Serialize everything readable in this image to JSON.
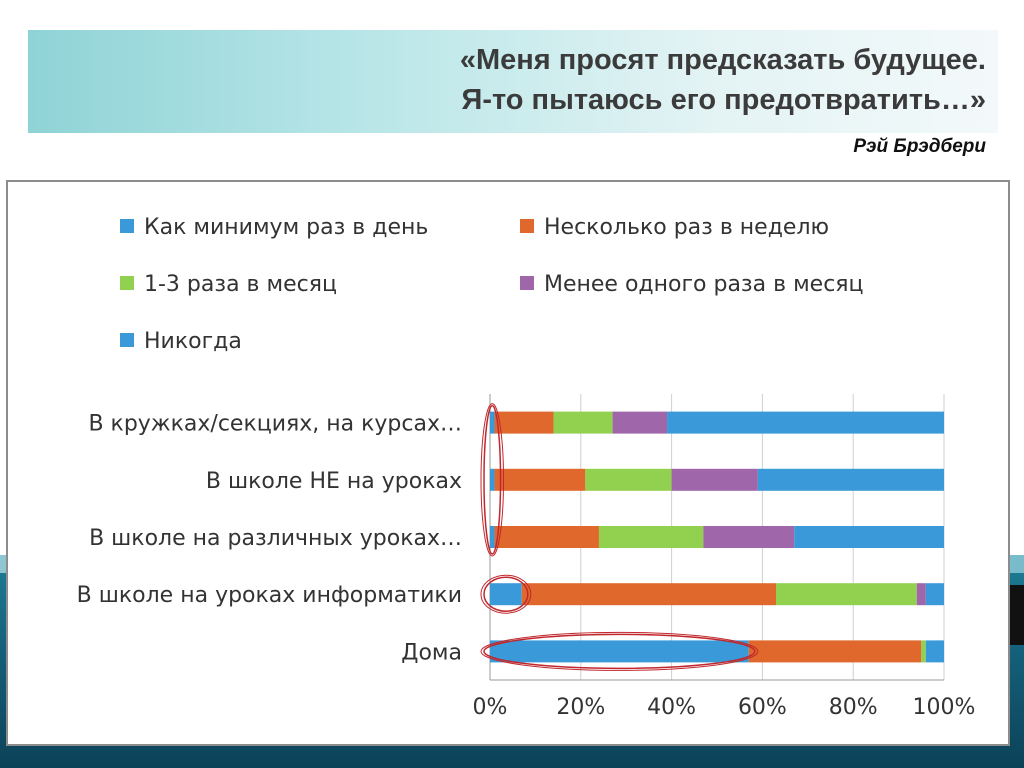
{
  "header": {
    "quote_line_1": "«Меня просят предсказать будущее.",
    "quote_line_2": "Я-то пытаюсь его предотвратить…»",
    "author": "Рэй Брэдбери"
  },
  "chart_data": {
    "type": "bar",
    "orientation": "horizontal",
    "stacked": "percent",
    "title": "",
    "xlabel": "",
    "ylabel": "",
    "xlim": [
      0,
      100
    ],
    "x_ticks": [
      "0%",
      "20%",
      "40%",
      "60%",
      "80%",
      "100%"
    ],
    "grid": true,
    "legend_position": "top",
    "categories": [
      "В кружках/секциях, на курсах…",
      "В школе НЕ на уроках",
      "В школе на различных уроках…",
      "В школе на уроках информатики",
      "Дома"
    ],
    "series": [
      {
        "name": "Как минимум раз в день",
        "color": "#3a9ad9",
        "values": [
          1,
          1,
          1,
          7,
          57
        ]
      },
      {
        "name": "Несколько раз в неделю",
        "color": "#e0682c",
        "values": [
          13,
          20,
          23,
          56,
          38
        ]
      },
      {
        "name": "1-3 раза в месяц",
        "color": "#92d050",
        "values": [
          13,
          19,
          23,
          31,
          1
        ]
      },
      {
        "name": "Менее одного раза в месяц",
        "color": "#a066aa",
        "values": [
          12,
          19,
          20,
          2,
          0
        ]
      },
      {
        "name": "Никогда",
        "color": "#3a9ad9",
        "values": [
          61,
          41,
          33,
          4,
          4
        ]
      }
    ],
    "highlights": [
      {
        "type": "ellipse",
        "categories": [
          0,
          1,
          2
        ],
        "series": 0
      },
      {
        "type": "ellipse",
        "categories": [
          3
        ],
        "series": 0
      },
      {
        "type": "ellipse",
        "categories": [
          4
        ],
        "series": 0
      }
    ],
    "highlight_color": "#c0282d"
  }
}
